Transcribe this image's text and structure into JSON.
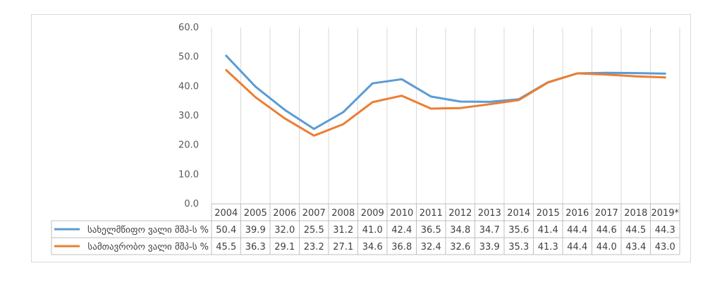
{
  "chart_data": {
    "type": "line",
    "title": "",
    "xlabel": "",
    "ylabel": "",
    "categories": [
      "2004",
      "2005",
      "2006",
      "2007",
      "2008",
      "2009",
      "2010",
      "2011",
      "2012",
      "2013",
      "2014",
      "2015",
      "2016",
      "2017",
      "2018",
      "2019*"
    ],
    "ylim": [
      0,
      60
    ],
    "yticks": [
      "0.0",
      "10.0",
      "20.0",
      "30.0",
      "40.0",
      "50.0",
      "60.0"
    ],
    "grid": "vertical",
    "legend": "data-table-below",
    "series": [
      {
        "name": "სახელმწიფო ვალი მშპ-ს %",
        "color": "#5b9bd5",
        "values": [
          50.4,
          39.9,
          32.0,
          25.5,
          31.2,
          41.0,
          42.4,
          36.5,
          34.8,
          34.7,
          35.6,
          41.4,
          44.4,
          44.6,
          44.5,
          44.3
        ],
        "labels": [
          "50.4",
          "39.9",
          "32.0",
          "25.5",
          "31.2",
          "41.0",
          "42.4",
          "36.5",
          "34.8",
          "34.7",
          "35.6",
          "41.4",
          "44.4",
          "44.6",
          "44.5",
          "44.3"
        ]
      },
      {
        "name": "სამთავრობო ვალი მშპ-ს %",
        "color": "#ed7d31",
        "values": [
          45.5,
          36.3,
          29.1,
          23.2,
          27.1,
          34.6,
          36.8,
          32.4,
          32.6,
          33.9,
          35.3,
          41.3,
          44.4,
          44.0,
          43.4,
          43.0
        ],
        "labels": [
          "45.5",
          "36.3",
          "29.1",
          "23.2",
          "27.1",
          "34.6",
          "36.8",
          "32.4",
          "32.6",
          "33.9",
          "35.3",
          "41.3",
          "44.4",
          "44.0",
          "43.4",
          "43.0"
        ]
      }
    ]
  }
}
